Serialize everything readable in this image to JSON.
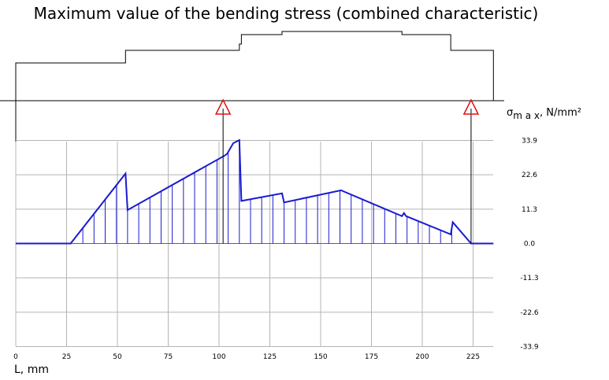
{
  "chart_data": {
    "type": "line",
    "title": "Maximum value of the bending stress (combined characteristic)",
    "xlabel": "L, mm",
    "ylabel_symbol": "σ",
    "ylabel_sub": "m a x",
    "ylabel_unit": ", N/mm²",
    "xlim": [
      0,
      235
    ],
    "ylim": [
      -33.9,
      33.9
    ],
    "x_ticks": [
      "0",
      "25",
      "50",
      "75",
      "100",
      "125",
      "150",
      "175",
      "200",
      "225"
    ],
    "y_ticks": [
      "33.9",
      "22.6",
      "11.3",
      "0.0",
      "-11.3",
      "-22.6",
      "-33.9"
    ],
    "grid": true,
    "line_color": "#1a1ad2",
    "support_color": "#e01010",
    "series": [
      {
        "x": [
          0,
          27,
          54,
          55,
          103,
          104,
          107,
          110,
          111,
          131,
          132,
          160,
          190,
          191,
          192,
          214,
          215,
          224,
          235
        ],
        "y": [
          0,
          0,
          23,
          11,
          29,
          29.5,
          33,
          34,
          14,
          16.5,
          13.5,
          17.5,
          9,
          10,
          9,
          3,
          7,
          0,
          0
        ]
      }
    ],
    "supports_x": [
      102,
      224
    ],
    "shaft_profile": [
      {
        "x0": 0,
        "x1": 54,
        "h": 12
      },
      {
        "x0": 54,
        "x1": 110,
        "h": 16
      },
      {
        "x0": 110,
        "x1": 111,
        "h": 18
      },
      {
        "x0": 111,
        "x1": 131,
        "h": 21
      },
      {
        "x0": 131,
        "x1": 190,
        "h": 22
      },
      {
        "x0": 190,
        "x1": 214,
        "h": 21
      },
      {
        "x0": 214,
        "x1": 215,
        "h": 16
      },
      {
        "x0": 215,
        "x1": 235,
        "h": 16
      }
    ]
  }
}
